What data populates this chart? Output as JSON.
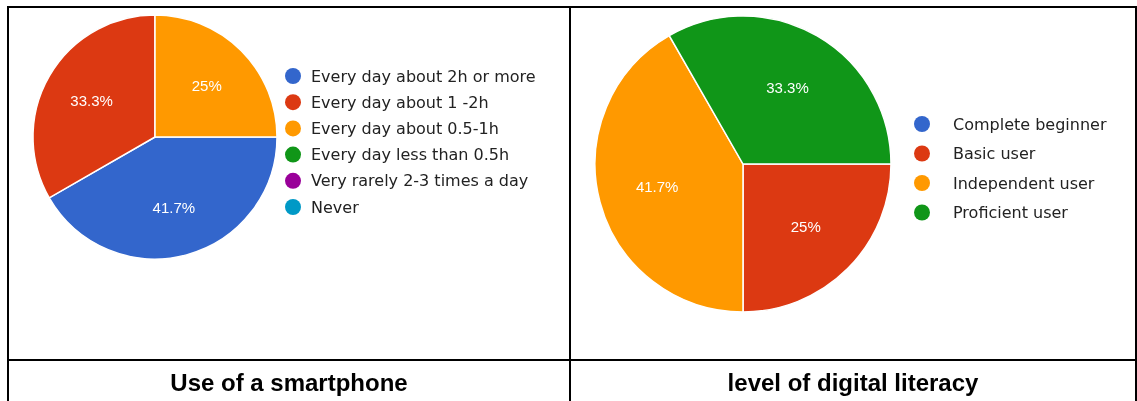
{
  "chart_data": [
    {
      "type": "pie",
      "title": "Use of a smartphone",
      "categories": [
        "Every day about 2h or more",
        "Every day about 1 -2h",
        "Every day about 0.5-1h",
        "Every day less than 0.5h",
        "Very rarely 2-3 times a day",
        "Never"
      ],
      "values": [
        41.7,
        33.3,
        25,
        0,
        0,
        0
      ],
      "colors": [
        "#3366cc",
        "#dc3912",
        "#ff9900",
        "#109618",
        "#990099",
        "#0099c6"
      ],
      "value_labels": [
        "41.7%",
        "33.3%",
        "25%",
        null,
        null,
        null
      ],
      "legend": "right"
    },
    {
      "type": "pie",
      "title": "level of digital literacy",
      "categories": [
        "Complete beginner",
        "Basic user",
        "Independent user",
        "Proficient user"
      ],
      "values": [
        0,
        25,
        41.7,
        33.3
      ],
      "colors": [
        "#3366cc",
        "#dc3912",
        "#ff9900",
        "#109618"
      ],
      "value_labels": [
        null,
        "25%",
        "41.7%",
        "33.3%"
      ],
      "legend": "right"
    }
  ]
}
